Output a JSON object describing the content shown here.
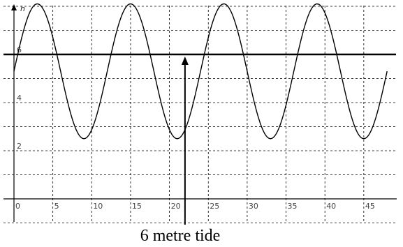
{
  "chart_data": {
    "type": "line",
    "title": "",
    "xlabel": "",
    "ylabel": "h",
    "xlim": [
      -1,
      49
    ],
    "ylim": [
      -3,
      9.5
    ],
    "grid": true,
    "x_ticks": [
      0,
      5,
      10,
      15,
      20,
      25,
      30,
      35,
      40,
      45
    ],
    "y_ticks": [
      2,
      4,
      6
    ],
    "series": [
      {
        "x": [
          0,
          3,
          9,
          15,
          21,
          27,
          33,
          39,
          45,
          48
        ],
        "y": [
          5,
          8.1,
          2.5,
          8.1,
          2.5,
          8.1,
          2.5,
          8.1,
          2.5,
          5
        ],
        "period": 12,
        "curve": "sinusoid"
      },
      {
        "x": [
          0,
          49
        ],
        "y": [
          6,
          6
        ],
        "style": "thick-horizontal-line"
      }
    ],
    "annotation": {
      "text": "6 metre tide",
      "arrow_x": 22,
      "arrow_to_y": 6
    }
  }
}
